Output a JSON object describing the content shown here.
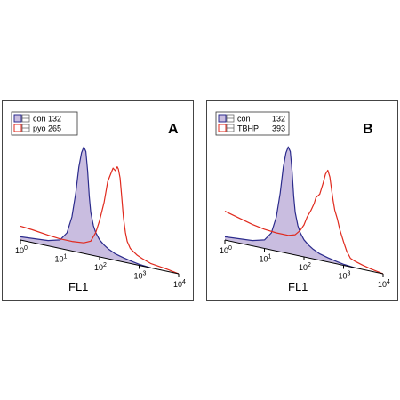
{
  "chart_data": [
    {
      "type": "area",
      "panel_label": "A",
      "xlabel": "FL1",
      "xscale": "log",
      "xlim": [
        1,
        10000
      ],
      "xticks": [
        {
          "base": "10",
          "exp": "0"
        },
        {
          "base": "10",
          "exp": "1"
        },
        {
          "base": "10",
          "exp": "2"
        },
        {
          "base": "10",
          "exp": "3"
        },
        {
          "base": "10",
          "exp": "4"
        }
      ],
      "legend_position": "top-left",
      "legend": [
        {
          "label": "con 132",
          "color": "#2b2b8c",
          "fill": "#c9bde0"
        },
        {
          "label": "pyo 265",
          "color": "#e02a1e",
          "fill": "none"
        }
      ],
      "series": [
        {
          "name": "con 132",
          "color": "#2b2b8c",
          "fill": "#c9bde0",
          "x": [
            1,
            5,
            10,
            15,
            20,
            25,
            30,
            35,
            40,
            45,
            50,
            55,
            60,
            70,
            80,
            100,
            130,
            170,
            250,
            400,
            700,
            1000,
            2000
          ],
          "y": [
            0.03,
            0.05,
            0.08,
            0.16,
            0.32,
            0.55,
            0.8,
            0.94,
            1.0,
            0.96,
            0.78,
            0.55,
            0.4,
            0.28,
            0.22,
            0.16,
            0.12,
            0.09,
            0.06,
            0.04,
            0.02,
            0.01,
            0.0
          ]
        },
        {
          "name": "pyo 265",
          "color": "#e02a1e",
          "fill": "none",
          "x": [
            1,
            2,
            5,
            10,
            20,
            40,
            60,
            80,
            100,
            130,
            160,
            200,
            220,
            250,
            280,
            300,
            330,
            360,
            400,
            450,
            500,
            600,
            700,
            900,
            1200,
            2000,
            5000,
            10000
          ],
          "y": [
            0.13,
            0.12,
            0.1,
            0.09,
            0.09,
            0.1,
            0.13,
            0.22,
            0.34,
            0.52,
            0.72,
            0.82,
            0.86,
            0.84,
            0.88,
            0.86,
            0.78,
            0.62,
            0.42,
            0.28,
            0.2,
            0.14,
            0.12,
            0.09,
            0.07,
            0.04,
            0.02,
            0.0
          ]
        }
      ]
    },
    {
      "type": "area",
      "panel_label": "B",
      "xlabel": "FL1",
      "xscale": "log",
      "xlim": [
        1,
        10000
      ],
      "xticks": [
        {
          "base": "10",
          "exp": "0"
        },
        {
          "base": "10",
          "exp": "1"
        },
        {
          "base": "10",
          "exp": "2"
        },
        {
          "base": "10",
          "exp": "3"
        },
        {
          "base": "10",
          "exp": "4"
        }
      ],
      "legend_position": "top-left",
      "legend": [
        {
          "label": "con",
          "value": "132",
          "color": "#2b2b8c",
          "fill": "#c9bde0"
        },
        {
          "label": "TBHP",
          "value": "393",
          "color": "#e02a1e",
          "fill": "none"
        }
      ],
      "series": [
        {
          "name": "con 132",
          "color": "#2b2b8c",
          "fill": "#c9bde0",
          "x": [
            1,
            5,
            10,
            15,
            20,
            25,
            30,
            35,
            40,
            45,
            50,
            55,
            60,
            70,
            80,
            100,
            130,
            170,
            250,
            400,
            700,
            1000,
            2000
          ],
          "y": [
            0.03,
            0.05,
            0.08,
            0.16,
            0.32,
            0.55,
            0.8,
            0.94,
            1.0,
            0.96,
            0.78,
            0.55,
            0.4,
            0.28,
            0.22,
            0.16,
            0.12,
            0.09,
            0.06,
            0.04,
            0.02,
            0.01,
            0.0
          ]
        },
        {
          "name": "TBHP 393",
          "color": "#e02a1e",
          "fill": "none",
          "x": [
            1,
            2,
            5,
            10,
            20,
            40,
            60,
            80,
            100,
            120,
            150,
            180,
            200,
            250,
            300,
            350,
            400,
            450,
            500,
            550,
            600,
            700,
            800,
            1000,
            1200,
            1500,
            2000,
            3000,
            5000,
            10000
          ],
          "y": [
            0.27,
            0.24,
            0.2,
            0.18,
            0.17,
            0.17,
            0.19,
            0.24,
            0.3,
            0.38,
            0.45,
            0.52,
            0.58,
            0.62,
            0.72,
            0.82,
            0.86,
            0.8,
            0.68,
            0.58,
            0.5,
            0.42,
            0.33,
            0.22,
            0.14,
            0.08,
            0.06,
            0.04,
            0.02,
            0.0
          ]
        }
      ]
    }
  ]
}
